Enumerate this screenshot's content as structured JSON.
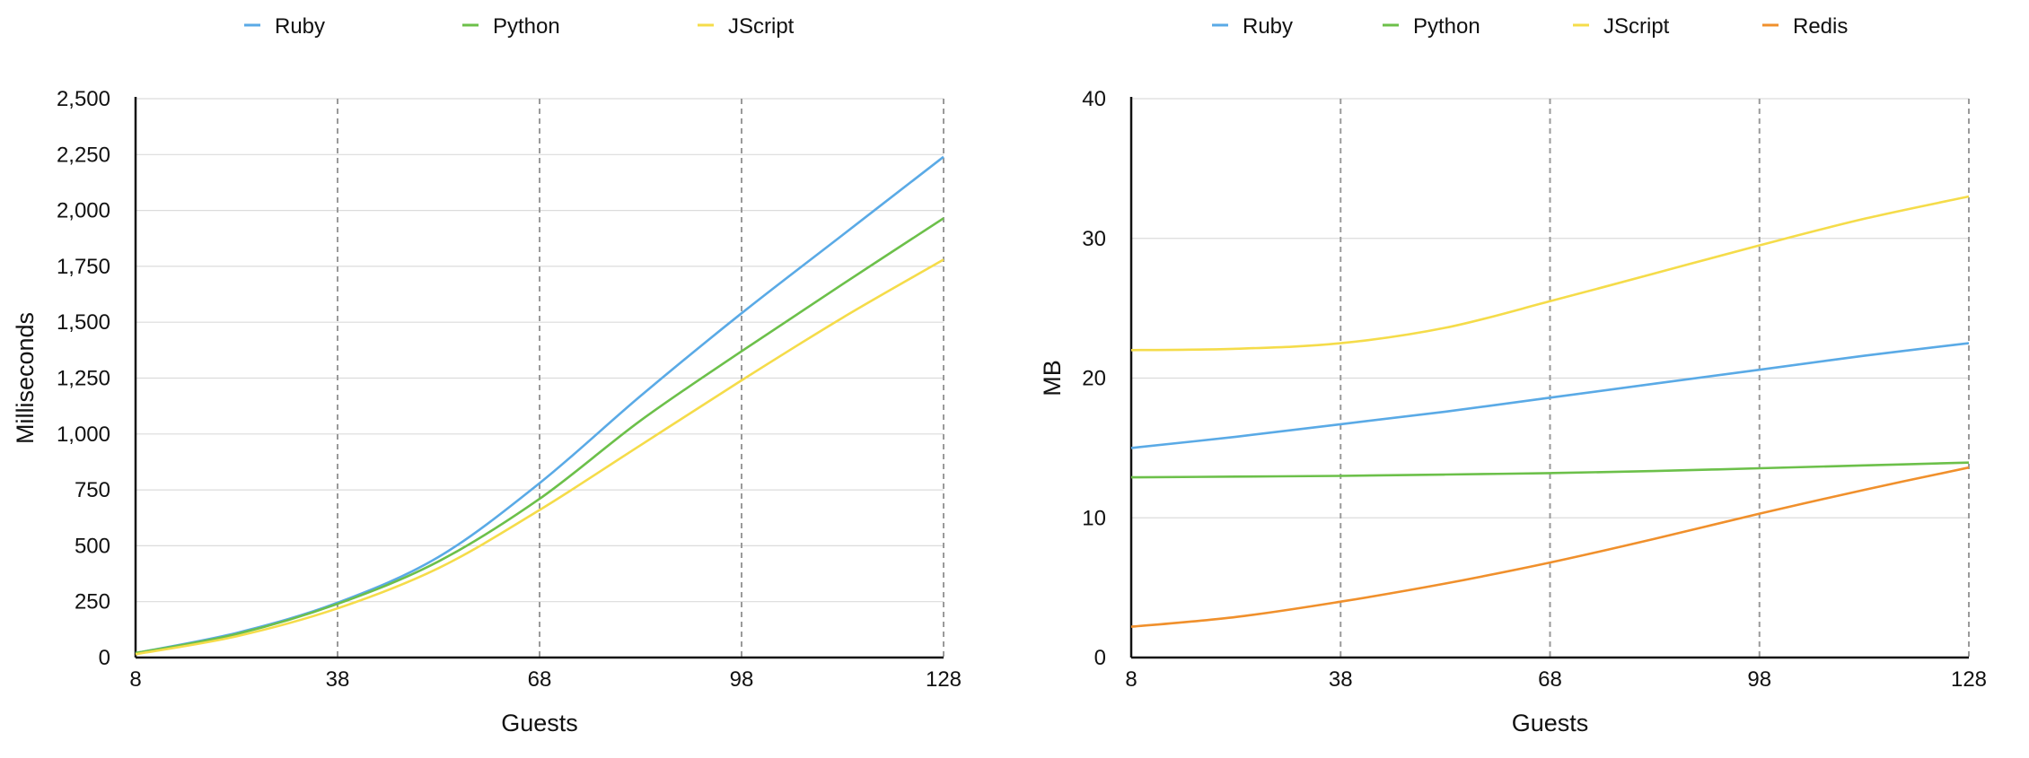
{
  "chart_data": [
    {
      "type": "line",
      "xlabel": "Guests",
      "ylabel": "Milliseconds",
      "x": [
        8,
        23,
        38,
        53,
        68,
        83,
        98,
        113,
        128
      ],
      "xticks": [
        "8",
        "38",
        "68",
        "98",
        "128"
      ],
      "yticks": [
        "0",
        "250",
        "500",
        "750",
        "1,000",
        "1,250",
        "1,500",
        "1,750",
        "2,000",
        "2,250",
        "2,500"
      ],
      "ylim": [
        0,
        2500
      ],
      "xlim": [
        8,
        128
      ],
      "grid": "horizontal solid, vertical dashed at x ticks",
      "legend_position": "top",
      "series": [
        {
          "name": "Ruby",
          "color": "#5aaae6",
          "values": [
            20,
            110,
            245,
            450,
            780,
            1170,
            1540,
            1890,
            2240
          ]
        },
        {
          "name": "Python",
          "color": "#6cc04a",
          "values": [
            20,
            105,
            240,
            430,
            710,
            1060,
            1370,
            1670,
            1965
          ]
        },
        {
          "name": "JScript",
          "color": "#f5dc4a",
          "values": [
            15,
            95,
            220,
            400,
            660,
            950,
            1240,
            1520,
            1780
          ]
        }
      ]
    },
    {
      "type": "line",
      "xlabel": "Guests",
      "ylabel": "MB",
      "x": [
        8,
        23,
        38,
        53,
        68,
        83,
        98,
        113,
        128
      ],
      "xticks": [
        "8",
        "38",
        "68",
        "98",
        "128"
      ],
      "yticks": [
        "0",
        "10",
        "20",
        "30",
        "40"
      ],
      "ylim": [
        0,
        40
      ],
      "xlim": [
        8,
        128
      ],
      "grid": "horizontal solid, vertical dashed at x ticks",
      "legend_position": "top",
      "series": [
        {
          "name": "Ruby",
          "color": "#5aaae6",
          "values": [
            15.0,
            15.8,
            16.7,
            17.6,
            18.6,
            19.6,
            20.6,
            21.6,
            22.5
          ]
        },
        {
          "name": "Python",
          "color": "#6cc04a",
          "values": [
            12.9,
            12.95,
            13.0,
            13.1,
            13.2,
            13.35,
            13.55,
            13.75,
            13.95
          ]
        },
        {
          "name": "JScript",
          "color": "#f5dc4a",
          "values": [
            22.0,
            22.1,
            22.5,
            23.6,
            25.5,
            27.5,
            29.5,
            31.4,
            33.0
          ]
        },
        {
          "name": "Redis",
          "color": "#f0902c",
          "values": [
            2.2,
            2.9,
            4.0,
            5.3,
            6.8,
            8.5,
            10.3,
            12.0,
            13.6
          ]
        }
      ]
    }
  ]
}
